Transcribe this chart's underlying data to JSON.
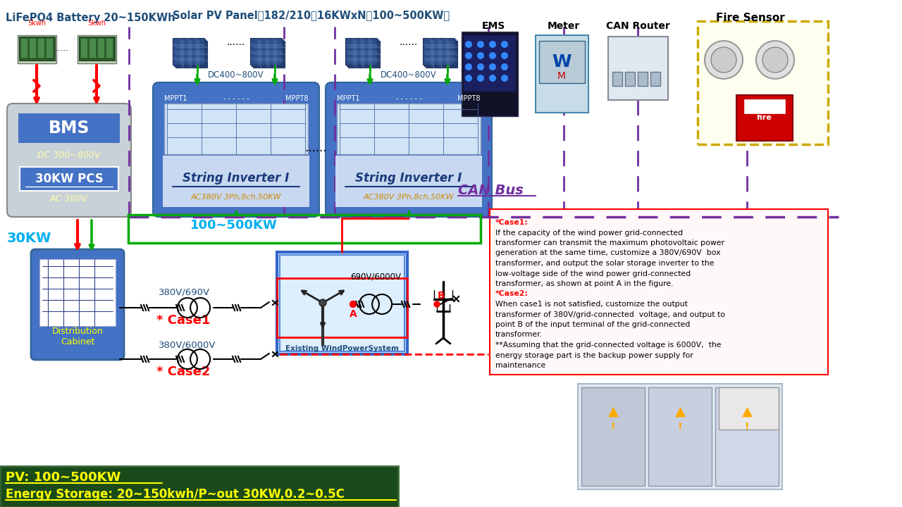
{
  "bg_color": "#ffffff",
  "battery_title": "LiFePO4 Battery 20~150KWh",
  "solar_title": "Solar PV Panel（182/210，16KWxN，100~500KW）",
  "ems_label": "EMS",
  "meter_label": "Meter",
  "can_router_label": "CAN Router",
  "fire_sensor_label": "Fire Sensor",
  "bms_label": "BMS",
  "dc_voltage": "DC 300~800V",
  "pcs_label": "30KW PCS",
  "ac_voltage": "AC 380V",
  "dc_range": "DC400~800V",
  "mppt1": "MPPT1",
  "mppt8": "MPPT8",
  "inverter_label": "String Inverter I",
  "inverter_spec": "AC380V 3Ph,8ch,50KW",
  "can_bus_label": "CAN Bus",
  "dist_cabinet": "Distribution\nCabinet",
  "power_30kw": "30KW",
  "power_100_500kw": "100~500KW",
  "case1_label": "* Case1",
  "case2_label": "* Case2",
  "v380_690": "380V/690V",
  "v380_6000": "380V/6000V",
  "v690_6000": "690V/6000V",
  "wind_system": "Existing WindPowerSystem",
  "point_a": "A",
  "point_b": "B",
  "pv_summary": "PV: 100~500KW",
  "storage_summary": "Energy Storage: 20~150kwh/P~out 30KW,0.2~0.5C",
  "kwh_label": "5kwh",
  "green_line": "#00aa00",
  "red_line": "#cc0000",
  "purple_dash": "#7030a0",
  "blue_text": "#1f4e79",
  "cyan_text": "#00b0f0",
  "case_lines": [
    [
      "*Case1:",
      true
    ],
    [
      "If the capacity of the wind power grid-connected",
      false
    ],
    [
      "transformer can transmit the maximum photovoltaic power",
      false
    ],
    [
      "generation at the same time, customize a 380V/690V  box",
      false
    ],
    [
      "transformer, and output the solar storage inverter to the",
      false
    ],
    [
      "low-voltage side of the wind power grid-connected",
      false
    ],
    [
      "transformer, as shown at point A in the figure.",
      false
    ],
    [
      "*Case2:",
      true
    ],
    [
      "When case1 is not satisfied, customize the output",
      false
    ],
    [
      "transformer of 380V/grid-connected  voltage, and output to",
      false
    ],
    [
      "point B of the input terminal of the grid-connected",
      false
    ],
    [
      "transformer.",
      false
    ],
    [
      "**Assuming that the grid-connected voltage is 6000V,  the",
      false
    ],
    [
      "energy storage part is the backup power supply for",
      false
    ],
    [
      "maintenance",
      false
    ]
  ]
}
